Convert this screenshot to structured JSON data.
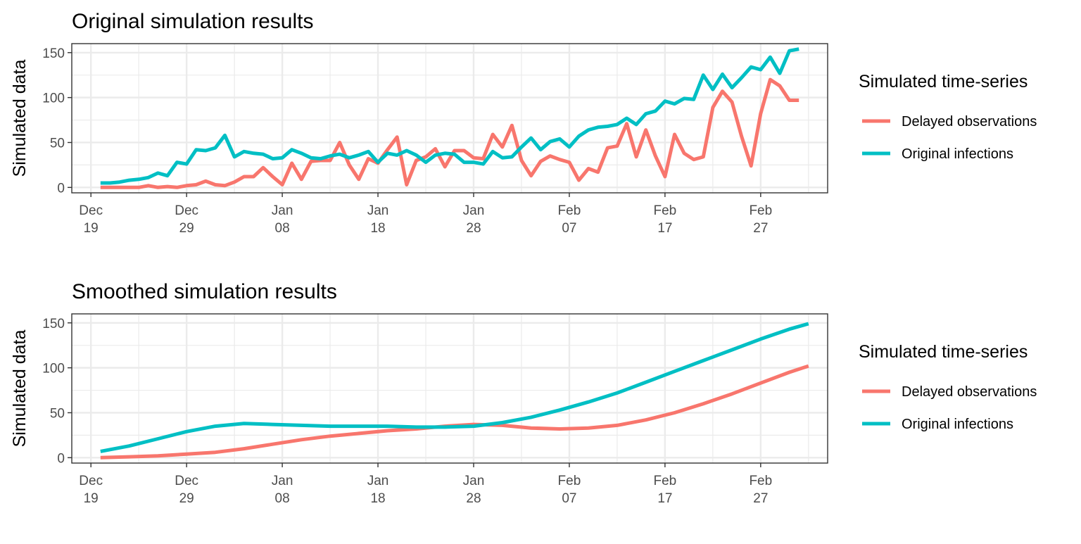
{
  "chart_data": [
    {
      "type": "line",
      "title": "Original simulation results",
      "xlabel": "",
      "ylabel": "Simulated data",
      "x_domain": [
        "2020-12-17",
        "2021-03-06"
      ],
      "ylim": [
        -6,
        160
      ],
      "yticks": [
        0,
        50,
        100,
        150
      ],
      "xticks": [
        {
          "date": "2020-12-19",
          "month": "Dec",
          "day": "19"
        },
        {
          "date": "2020-12-29",
          "month": "Dec",
          "day": "29"
        },
        {
          "date": "2021-01-08",
          "month": "Jan",
          "day": "08"
        },
        {
          "date": "2021-01-18",
          "month": "Jan",
          "day": "18"
        },
        {
          "date": "2021-01-28",
          "month": "Jan",
          "day": "28"
        },
        {
          "date": "2021-02-07",
          "month": "Feb",
          "day": "07"
        },
        {
          "date": "2021-02-17",
          "month": "Feb",
          "day": "17"
        },
        {
          "date": "2021-02-27",
          "month": "Feb",
          "day": "27"
        }
      ],
      "grid": true,
      "legend": {
        "title": "Simulated time-series",
        "position": "right"
      },
      "series": [
        {
          "name": "Delayed observations",
          "color": "#F8766D",
          "start_date": "2020-12-20",
          "values": [
            0,
            0,
            0,
            0,
            0,
            2,
            0,
            1,
            0,
            2,
            3,
            7,
            3,
            2,
            6,
            12,
            12,
            22,
            12,
            3,
            27,
            9,
            29,
            30,
            30,
            50,
            25,
            9,
            32,
            27,
            42,
            56,
            3,
            30,
            34,
            43,
            23,
            41,
            41,
            33,
            32,
            59,
            45,
            69,
            30,
            13,
            29,
            35,
            31,
            28,
            8,
            21,
            17,
            44,
            46,
            71,
            34,
            64,
            35,
            12,
            59,
            38,
            31,
            34,
            89,
            107,
            95,
            57,
            24,
            82,
            120,
            113,
            97,
            97
          ]
        },
        {
          "name": "Original infections",
          "color": "#00BFC4",
          "start_date": "2020-12-20",
          "values": [
            5,
            5,
            6,
            8,
            9,
            11,
            16,
            13,
            28,
            26,
            42,
            41,
            44,
            58,
            34,
            40,
            38,
            37,
            32,
            33,
            42,
            38,
            33,
            32,
            35,
            37,
            33,
            36,
            40,
            28,
            38,
            36,
            41,
            36,
            28,
            36,
            38,
            37,
            28,
            28,
            26,
            40,
            33,
            34,
            45,
            55,
            42,
            51,
            54,
            45,
            57,
            64,
            67,
            68,
            70,
            77,
            70,
            82,
            85,
            96,
            93,
            99,
            98,
            125,
            109,
            126,
            111,
            122,
            134,
            131,
            145,
            127,
            152,
            154
          ]
        }
      ]
    },
    {
      "type": "line",
      "title": "Smoothed simulation results",
      "xlabel": "",
      "ylabel": "Simulated data",
      "x_domain": [
        "2020-12-17",
        "2021-03-06"
      ],
      "ylim": [
        -6,
        160
      ],
      "yticks": [
        0,
        50,
        100,
        150
      ],
      "xticks": [
        {
          "date": "2020-12-19",
          "month": "Dec",
          "day": "19"
        },
        {
          "date": "2020-12-29",
          "month": "Dec",
          "day": "29"
        },
        {
          "date": "2021-01-08",
          "month": "Jan",
          "day": "08"
        },
        {
          "date": "2021-01-18",
          "month": "Jan",
          "day": "18"
        },
        {
          "date": "2021-01-28",
          "month": "Jan",
          "day": "28"
        },
        {
          "date": "2021-02-07",
          "month": "Feb",
          "day": "07"
        },
        {
          "date": "2021-02-17",
          "month": "Feb",
          "day": "17"
        },
        {
          "date": "2021-02-27",
          "month": "Feb",
          "day": "27"
        }
      ],
      "grid": true,
      "legend": {
        "title": "Simulated time-series",
        "position": "right"
      },
      "series": [
        {
          "name": "Delayed observations",
          "color": "#F8766D",
          "points": [
            [
              "2020-12-20",
              0
            ],
            [
              "2020-12-23",
              1
            ],
            [
              "2020-12-26",
              2
            ],
            [
              "2020-12-29",
              4
            ],
            [
              "2021-01-01",
              6
            ],
            [
              "2021-01-04",
              10
            ],
            [
              "2021-01-07",
              15
            ],
            [
              "2021-01-10",
              20
            ],
            [
              "2021-01-13",
              24
            ],
            [
              "2021-01-16",
              27
            ],
            [
              "2021-01-19",
              30
            ],
            [
              "2021-01-22",
              32
            ],
            [
              "2021-01-25",
              35
            ],
            [
              "2021-01-28",
              37
            ],
            [
              "2021-01-31",
              36
            ],
            [
              "2021-02-03",
              33
            ],
            [
              "2021-02-06",
              32
            ],
            [
              "2021-02-09",
              33
            ],
            [
              "2021-02-12",
              36
            ],
            [
              "2021-02-15",
              42
            ],
            [
              "2021-02-18",
              50
            ],
            [
              "2021-02-21",
              60
            ],
            [
              "2021-02-24",
              71
            ],
            [
              "2021-02-27",
              83
            ],
            [
              "2021-03-02",
              95
            ],
            [
              "2021-03-04",
              102
            ]
          ]
        },
        {
          "name": "Original infections",
          "color": "#00BFC4",
          "points": [
            [
              "2020-12-20",
              7
            ],
            [
              "2020-12-23",
              13
            ],
            [
              "2020-12-26",
              21
            ],
            [
              "2020-12-29",
              29
            ],
            [
              "2021-01-01",
              35
            ],
            [
              "2021-01-04",
              38
            ],
            [
              "2021-01-07",
              37
            ],
            [
              "2021-01-10",
              36
            ],
            [
              "2021-01-13",
              35
            ],
            [
              "2021-01-16",
              35
            ],
            [
              "2021-01-19",
              35
            ],
            [
              "2021-01-22",
              34
            ],
            [
              "2021-01-25",
              34
            ],
            [
              "2021-01-28",
              35
            ],
            [
              "2021-01-31",
              39
            ],
            [
              "2021-02-03",
              45
            ],
            [
              "2021-02-06",
              53
            ],
            [
              "2021-02-09",
              62
            ],
            [
              "2021-02-12",
              72
            ],
            [
              "2021-02-15",
              84
            ],
            [
              "2021-02-18",
              96
            ],
            [
              "2021-02-21",
              108
            ],
            [
              "2021-02-24",
              120
            ],
            [
              "2021-02-27",
              132
            ],
            [
              "2021-03-02",
              143
            ],
            [
              "2021-03-04",
              149
            ]
          ]
        }
      ]
    }
  ]
}
